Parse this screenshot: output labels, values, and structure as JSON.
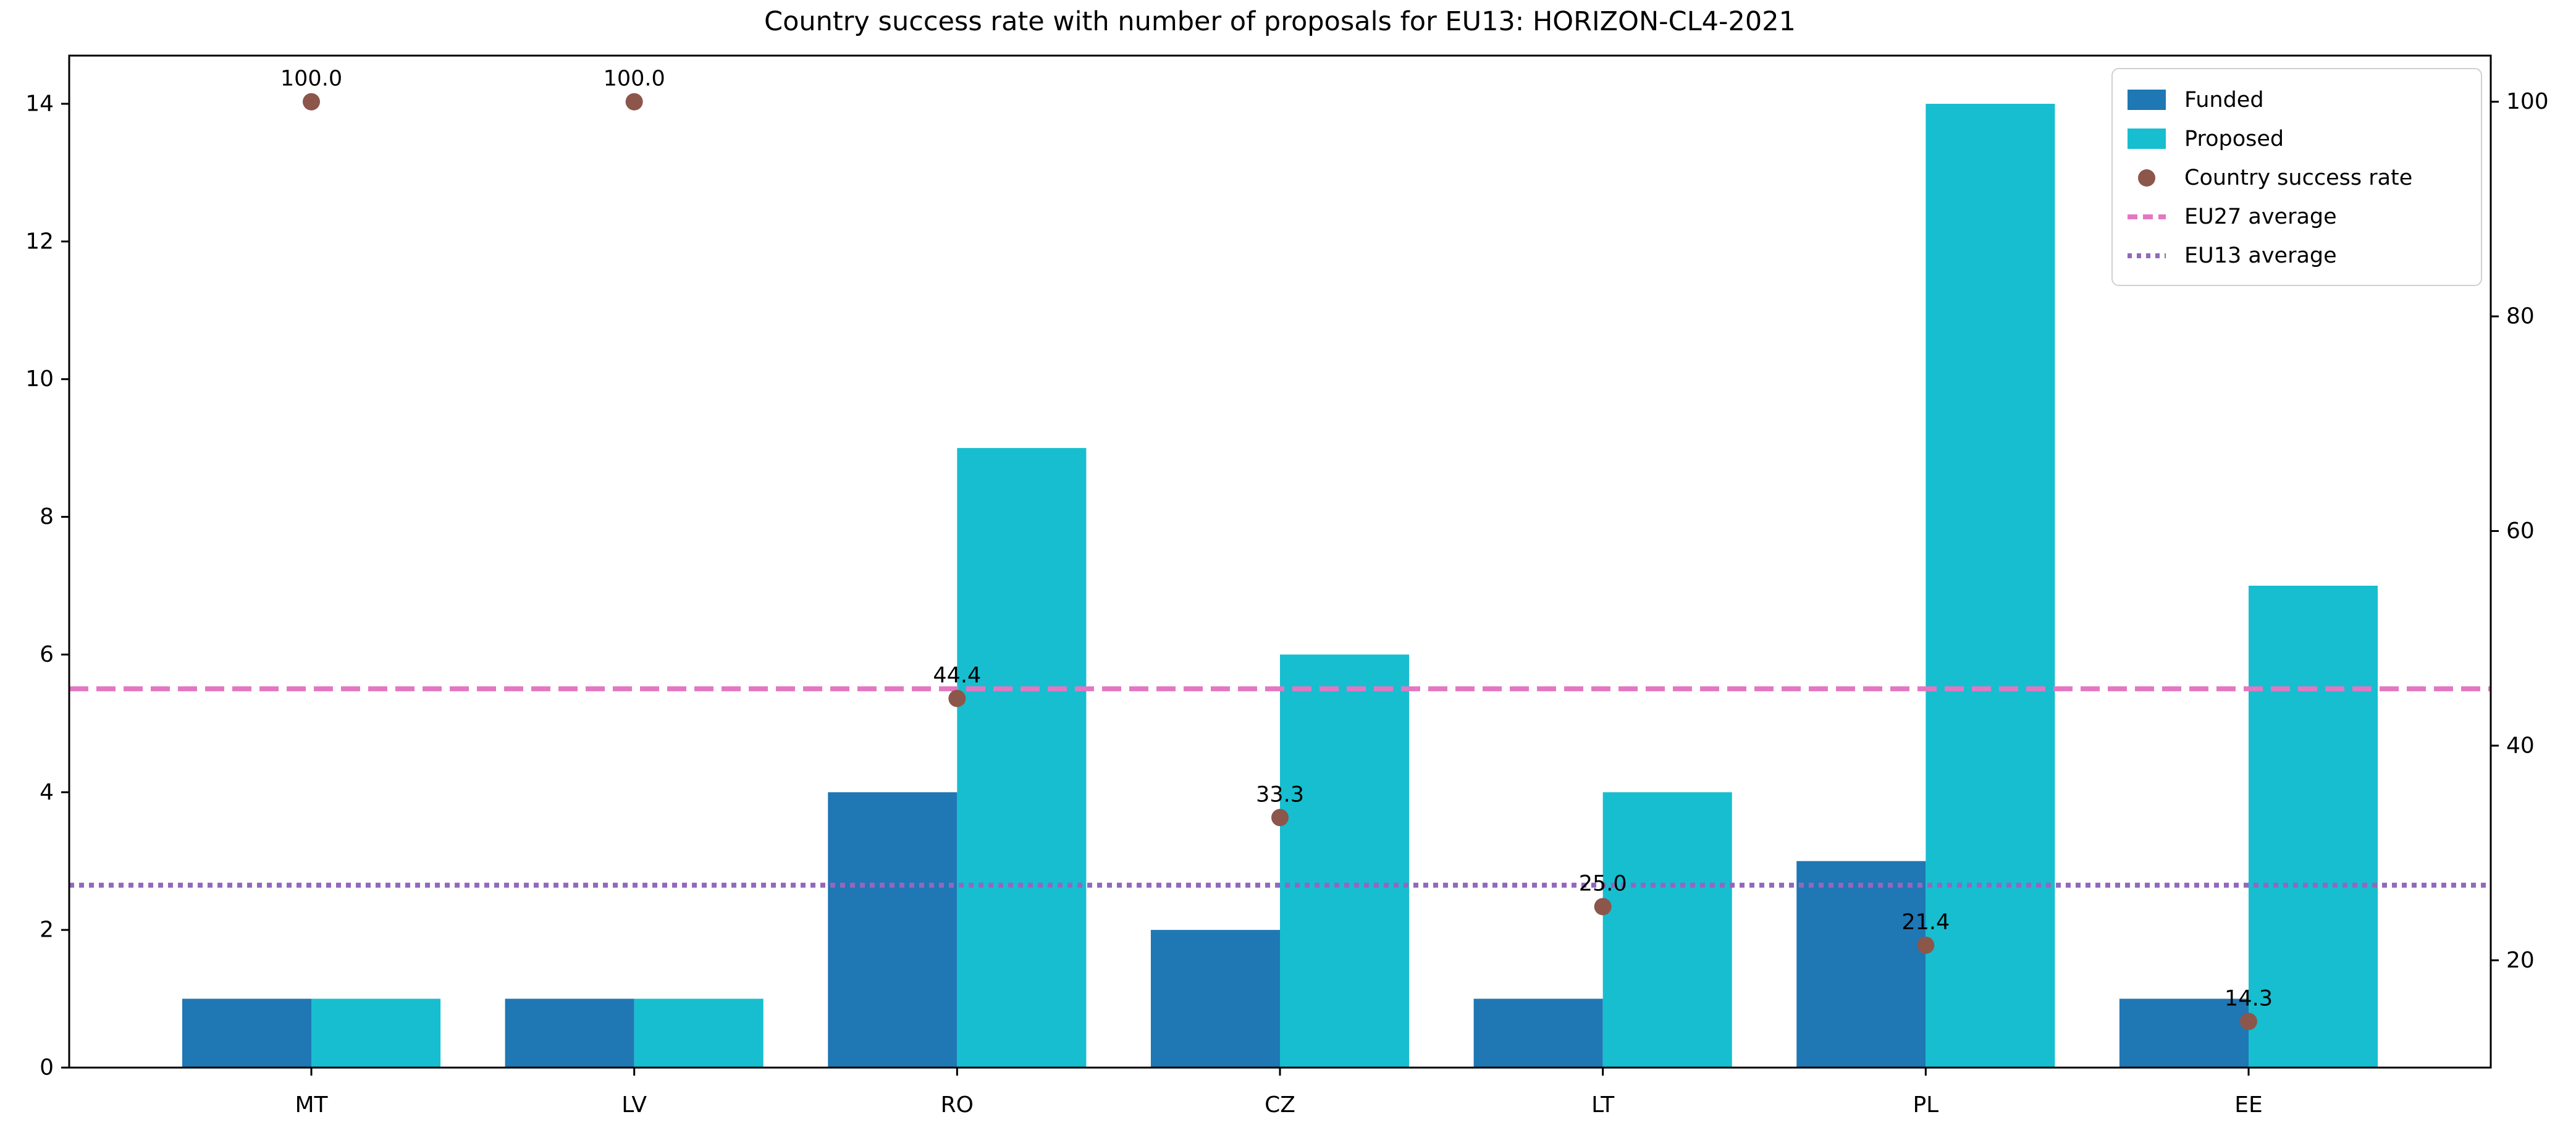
{
  "chart_data": {
    "type": "bar",
    "title": "Country success rate with number of proposals for EU13: HORIZON-CL4-2021",
    "categories": [
      "MT",
      "LV",
      "RO",
      "CZ",
      "LT",
      "PL",
      "EE"
    ],
    "series": [
      {
        "name": "Funded",
        "values": [
          1,
          1,
          4,
          2,
          1,
          3,
          1
        ]
      },
      {
        "name": "Proposed",
        "values": [
          1,
          1,
          9,
          6,
          4,
          14,
          7
        ]
      }
    ],
    "scatter": {
      "name": "Country success rate",
      "axis": "right",
      "values": [
        100.0,
        100.0,
        44.4,
        33.3,
        25.0,
        21.4,
        14.3
      ],
      "point_labels": [
        "100.0",
        "100.0",
        "44.4",
        "33.3",
        "25.0",
        "21.4",
        "14.3"
      ]
    },
    "reference_lines": [
      {
        "name": "EU27 average",
        "axis": "right",
        "value": 45.3,
        "style": "dashed"
      },
      {
        "name": "EU13 average",
        "axis": "right",
        "value": 27.0,
        "style": "dotted"
      }
    ],
    "left_axis": {
      "range": [
        0,
        14.7
      ],
      "ticks": [
        0,
        2,
        4,
        6,
        8,
        10,
        12,
        14
      ]
    },
    "right_axis": {
      "range": [
        10.0,
        104.3
      ],
      "ticks": [
        20,
        40,
        60,
        80,
        100
      ]
    },
    "grid": false,
    "legend_position": "upper right",
    "colors": {
      "funded": "#1f77b4",
      "proposed": "#17becf",
      "success_rate": "#8c564b",
      "eu27": "#e377c2",
      "eu13": "#9467bd",
      "axis": "#000000",
      "legend_border": "#d0d0d0"
    },
    "legend_items": [
      {
        "label": "Funded"
      },
      {
        "label": "Proposed"
      },
      {
        "label": "Country success rate"
      },
      {
        "label": "EU27 average"
      },
      {
        "label": "EU13 average"
      }
    ]
  }
}
